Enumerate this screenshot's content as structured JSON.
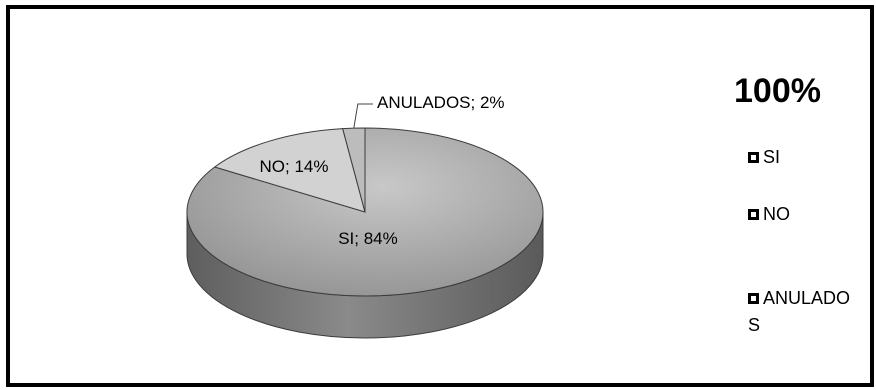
{
  "chart_data": {
    "type": "pie",
    "title": "100%",
    "legend_position": "right",
    "categories": [
      "SI",
      "NO",
      "ANULADOS"
    ],
    "values": [
      84,
      14,
      2
    ],
    "data_labels": [
      "SI; 84%",
      "NO; 14%",
      "ANULADOS; 2%"
    ],
    "legend_entries": [
      "SI",
      "NO",
      "ANULADO\nS"
    ],
    "colors": [
      "#a6a6a6",
      "#d2d2d2",
      "#bcbcbc"
    ]
  }
}
